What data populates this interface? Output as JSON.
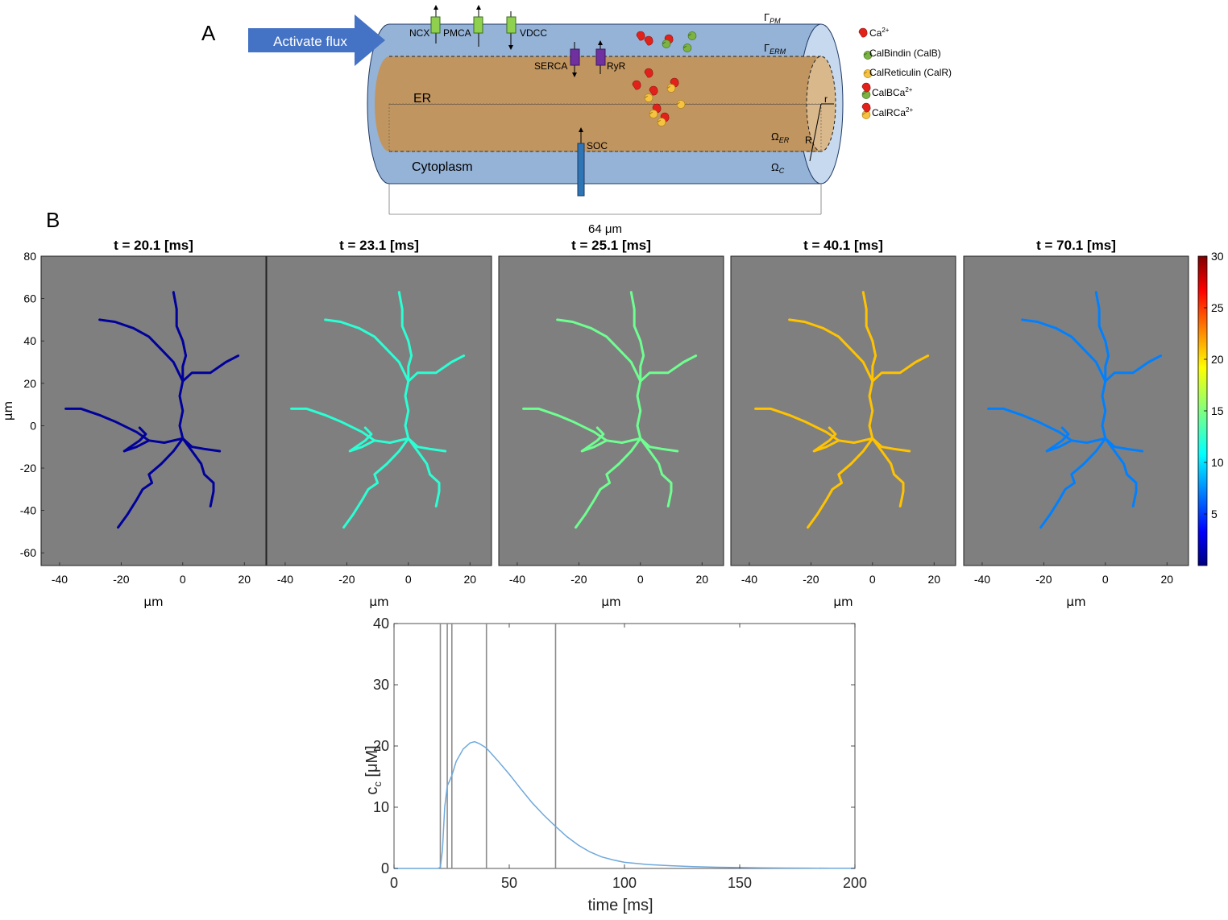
{
  "panel_a": {
    "letter": "A",
    "arrow_label": "Activate flux",
    "channels": [
      {
        "name": "NCX",
        "color": "#8fd14f",
        "dir": "up"
      },
      {
        "name": "PMCA",
        "color": "#8fd14f",
        "dir": "up"
      },
      {
        "name": "VDCC",
        "color": "#8fd14f",
        "dir": "down"
      },
      {
        "name": "SERCA",
        "color": "#7030a0",
        "dir": "down"
      },
      {
        "name": "RyR",
        "color": "#7030a0",
        "dir": "up"
      },
      {
        "name": "SOC",
        "color": "#2e75b6",
        "dir": "up"
      }
    ],
    "region_er": "ER",
    "region_cyto": "Cytoplasm",
    "gamma_pm": "Γ",
    "gamma_pm_sub": "PM",
    "gamma_erm": "Γ",
    "gamma_erm_sub": "ERM",
    "omega_er": "Ω",
    "omega_er_sub": "ER",
    "omega_c": "Ω",
    "omega_c_sub": "C",
    "radius_small": "r",
    "radius_big": "R",
    "length_label": "64 μm",
    "legend": [
      {
        "icon": "calcium-ion-icon",
        "label": "Ca",
        "sup": "2+"
      },
      {
        "icon": "calbindin-icon",
        "label": "CalBindin (CalB)",
        "sup": ""
      },
      {
        "icon": "calreticulin-icon",
        "label": "CalReticulin (CalR)",
        "sup": ""
      },
      {
        "icon": "calbindin-calcium-icon",
        "label": "CalBCa",
        "sup": "2+"
      },
      {
        "icon": "calreticulin-calcium-icon",
        "label": "CalRCa",
        "sup": "2+"
      }
    ],
    "colors": {
      "cyto": "#95b3d7",
      "er": "#c1955f",
      "calcium": "#e3211b",
      "calb": "#7cb342",
      "calr": "#f5c242",
      "arrow": "#4472c4"
    }
  },
  "panel_b": {
    "letter": "B",
    "heatmap_titles": [
      "t = 20.1 [ms]",
      "t = 23.1 [ms]",
      "t = 25.1 [ms]",
      "t = 40.1 [ms]",
      "t = 70.1 [ms]"
    ],
    "xlabel": "μm",
    "ylabel": "μm",
    "x_ticks": [
      -40,
      -20,
      0,
      20
    ],
    "y_ticks": [
      80,
      60,
      40,
      20,
      0,
      -20,
      -40,
      -60
    ],
    "xlim": [
      -46,
      27
    ],
    "ylim": [
      -66,
      80
    ],
    "background": "#7f7f7f",
    "colorbar_ticks": [
      30,
      25,
      20,
      15,
      10,
      5
    ],
    "colorbar_range": [
      0,
      30
    ],
    "panel_values": [
      0.8,
      12.5,
      14.5,
      20.5,
      7.5
    ]
  },
  "chart_data": {
    "type": "line",
    "xlabel": "time [ms]",
    "ylabel": "c",
    "ylabel_sub": "c",
    "ylabel_unit": "[μM]",
    "xlim": [
      0,
      200
    ],
    "ylim": [
      0,
      40
    ],
    "x_ticks": [
      0,
      50,
      100,
      150,
      200
    ],
    "y_ticks": [
      0,
      10,
      20,
      30,
      40
    ],
    "grid": false,
    "vertical_lines_x": [
      20.1,
      23.1,
      25.1,
      40.1,
      70.1
    ],
    "series": [
      {
        "color": "#6fa8dc",
        "x": [
          0,
          10,
          19,
          20.1,
          21,
          22,
          23.1,
          24,
          25.1,
          27,
          30,
          33,
          35,
          37,
          40,
          45,
          50,
          55,
          60,
          65,
          70,
          75,
          80,
          85,
          90,
          95,
          100,
          110,
          120,
          130,
          140,
          150,
          160,
          170,
          180,
          190,
          200
        ],
        "values": [
          0,
          0,
          0,
          0.2,
          3,
          10,
          13.5,
          14.2,
          15.2,
          17.5,
          19.5,
          20.5,
          20.7,
          20.4,
          19.7,
          17.6,
          15.4,
          13.0,
          10.7,
          8.7,
          6.9,
          5.2,
          3.8,
          2.7,
          1.9,
          1.4,
          1.0,
          0.65,
          0.45,
          0.3,
          0.2,
          0.15,
          0.1,
          0.07,
          0.05,
          0.03,
          0.02
        ]
      }
    ]
  }
}
